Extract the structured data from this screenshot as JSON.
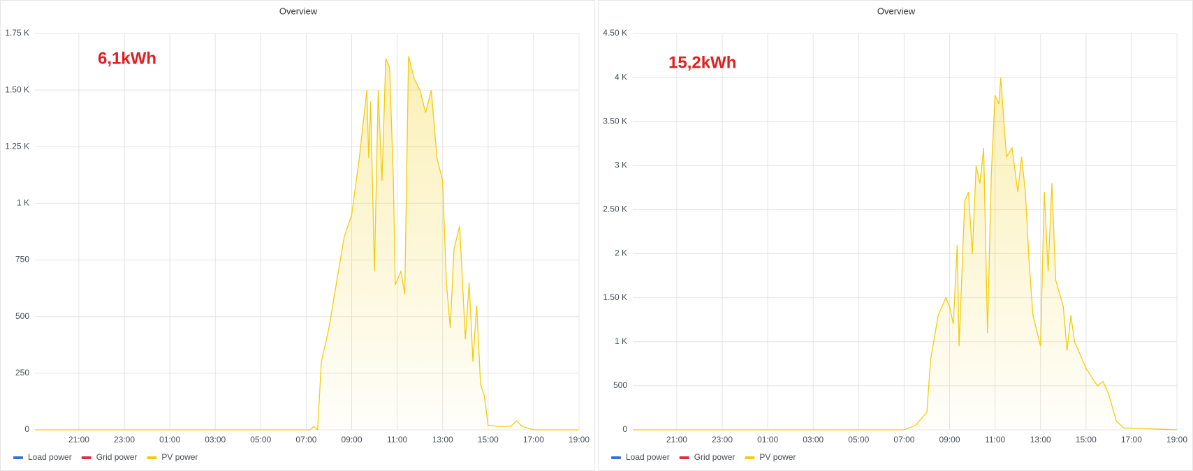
{
  "chart_data": [
    {
      "type": "line",
      "title": "Overview",
      "annotation": "6,1kWh",
      "xlim": [
        "19:04",
        "19:00"
      ],
      "xticks": [
        "21:00",
        "23:00",
        "01:00",
        "03:00",
        "05:00",
        "07:00",
        "09:00",
        "11:00",
        "13:00",
        "15:00",
        "17:00",
        "19:00"
      ],
      "ylim": [
        0,
        1750
      ],
      "yticks": [
        0,
        250,
        500,
        750,
        {
          "value": 1000,
          "label": "1 K"
        },
        {
          "value": 1250,
          "label": "1.25 K"
        },
        {
          "value": 1500,
          "label": "1.50 K"
        },
        {
          "value": 1750,
          "label": "1.75 K"
        }
      ],
      "grid": true,
      "legend": [
        {
          "name": "Load power",
          "color": "#3274d9"
        },
        {
          "name": "Grid power",
          "color": "#e02f44"
        },
        {
          "name": "PV power",
          "color": "#f2cc0c"
        }
      ],
      "x": [
        "19:04",
        "07:10",
        "07:20",
        "07:30",
        "07:40",
        "08:00",
        "08:20",
        "08:40",
        "09:00",
        "09:20",
        "09:40",
        "09:45",
        "09:50",
        "10:00",
        "10:10",
        "10:20",
        "10:30",
        "10:40",
        "10:50",
        "10:55",
        "11:10",
        "11:20",
        "11:30",
        "11:45",
        "12:00",
        "12:15",
        "12:30",
        "12:45",
        "13:00",
        "13:10",
        "13:20",
        "13:30",
        "13:45",
        "14:00",
        "14:10",
        "14:20",
        "14:30",
        "14:40",
        "14:50",
        "15:00",
        "15:30",
        "16:00",
        "16:15",
        "16:30",
        "17:00",
        "19:00"
      ],
      "series": [
        {
          "name": "PV power",
          "color": "#f2cc0c",
          "values": [
            0,
            0,
            15,
            0,
            300,
            450,
            650,
            850,
            950,
            1200,
            1500,
            1200,
            1450,
            700,
            1500,
            1100,
            1640,
            1600,
            1100,
            640,
            700,
            600,
            1650,
            1550,
            1500,
            1400,
            1500,
            1200,
            1100,
            650,
            450,
            800,
            900,
            400,
            650,
            300,
            550,
            200,
            150,
            20,
            15,
            15,
            40,
            15,
            0,
            0
          ]
        }
      ]
    },
    {
      "type": "line",
      "title": "Overview",
      "annotation": "15,2kWh",
      "xlim": [
        "19:04",
        "19:00"
      ],
      "xticks": [
        "21:00",
        "23:00",
        "01:00",
        "03:00",
        "05:00",
        "07:00",
        "09:00",
        "11:00",
        "13:00",
        "15:00",
        "17:00",
        "19:00"
      ],
      "ylim": [
        0,
        4500
      ],
      "yticks": [
        0,
        500,
        {
          "value": 1000,
          "label": "1 K"
        },
        {
          "value": 1500,
          "label": "1.50 K"
        },
        {
          "value": 2000,
          "label": "2 K"
        },
        {
          "value": 2500,
          "label": "2.50 K"
        },
        {
          "value": 3000,
          "label": "3 K"
        },
        {
          "value": 3500,
          "label": "3.50 K"
        },
        {
          "value": 4000,
          "label": "4 K"
        },
        {
          "value": 4500,
          "label": "4.50 K"
        }
      ],
      "grid": true,
      "legend": [
        {
          "name": "Load power",
          "color": "#3274d9"
        },
        {
          "name": "Grid power",
          "color": "#e02f44"
        },
        {
          "name": "PV power",
          "color": "#f2cc0c"
        }
      ],
      "x": [
        "19:04",
        "07:00",
        "07:30",
        "08:00",
        "08:10",
        "08:30",
        "08:50",
        "09:00",
        "09:10",
        "09:20",
        "09:25",
        "09:40",
        "09:50",
        "10:00",
        "10:10",
        "10:20",
        "10:30",
        "10:40",
        "10:50",
        "11:00",
        "11:10",
        "11:15",
        "11:30",
        "11:45",
        "12:00",
        "12:10",
        "12:20",
        "12:30",
        "12:40",
        "13:00",
        "13:10",
        "13:20",
        "13:30",
        "13:40",
        "14:00",
        "14:10",
        "14:20",
        "14:30",
        "14:45",
        "15:00",
        "15:15",
        "15:30",
        "15:45",
        "16:00",
        "16:20",
        "16:40",
        "17:00",
        "19:00"
      ],
      "series": [
        {
          "name": "PV power",
          "color": "#f2cc0c",
          "values": [
            0,
            0,
            50,
            200,
            800,
            1300,
            1500,
            1400,
            1200,
            2100,
            950,
            2600,
            2700,
            2000,
            3000,
            2800,
            3200,
            1100,
            2900,
            3800,
            3700,
            4000,
            3100,
            3200,
            2700,
            3100,
            2700,
            1900,
            1300,
            950,
            2700,
            1800,
            2800,
            1700,
            1400,
            900,
            1300,
            1000,
            850,
            700,
            600,
            500,
            550,
            400,
            100,
            20,
            20,
            0
          ]
        }
      ]
    }
  ]
}
